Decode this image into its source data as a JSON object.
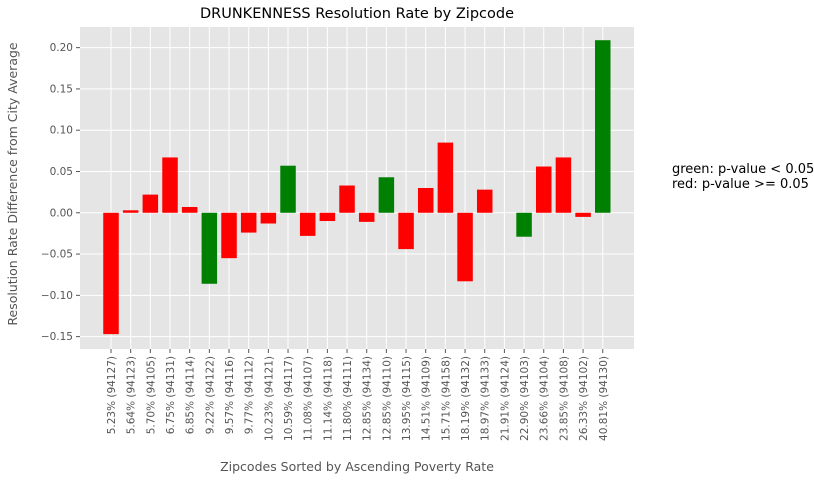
{
  "chart_data": {
    "type": "bar",
    "title": "DRUNKENNESS Resolution Rate by Zipcode",
    "xlabel": "Zipcodes Sorted by Ascending Poverty Rate",
    "ylabel": "Resolution Rate Difference from City Average",
    "ylim": [
      -0.165,
      0.225
    ],
    "yticks": [
      -0.15,
      -0.1,
      -0.05,
      0.0,
      0.05,
      0.1,
      0.15,
      0.2
    ],
    "ytick_labels": [
      "−0.15",
      "−0.10",
      "−0.05",
      "0.00",
      "0.05",
      "0.10",
      "0.15",
      "0.20"
    ],
    "grid": true,
    "categories": [
      "5.23% (94127)",
      "5.64% (94123)",
      "5.70% (94105)",
      "6.75% (94131)",
      "6.85% (94114)",
      "9.22% (94122)",
      "9.57% (94116)",
      "9.77% (94112)",
      "10.23% (94121)",
      "10.59% (94117)",
      "11.08% (94107)",
      "11.14% (94118)",
      "11.80% (94111)",
      "12.85% (94134)",
      "12.85% (94110)",
      "13.95% (94115)",
      "14.51% (94109)",
      "15.71% (94158)",
      "18.19% (94132)",
      "18.97% (94133)",
      "21.91% (94124)",
      "22.90% (94103)",
      "23.66% (94104)",
      "23.85% (94108)",
      "26.33% (94102)",
      "40.81% (94130)"
    ],
    "values": [
      -0.147,
      0.003,
      0.022,
      0.067,
      0.007,
      -0.086,
      -0.055,
      -0.024,
      -0.013,
      0.057,
      -0.028,
      -0.01,
      0.033,
      -0.011,
      0.043,
      -0.044,
      0.03,
      0.085,
      -0.083,
      0.028,
      0.0,
      -0.029,
      0.056,
      0.067,
      -0.005,
      0.209
    ],
    "significant": [
      false,
      false,
      false,
      false,
      false,
      true,
      false,
      false,
      false,
      true,
      false,
      false,
      false,
      false,
      true,
      false,
      false,
      false,
      false,
      false,
      false,
      true,
      false,
      false,
      false,
      true
    ],
    "colors": {
      "significant": "#008000",
      "not_significant": "#ff0000",
      "plot_bg": "#e5e5e5",
      "grid": "#ffffff"
    },
    "legend_notes": [
      "green: p-value < 0.05",
      "red: p-value >= 0.05"
    ]
  }
}
